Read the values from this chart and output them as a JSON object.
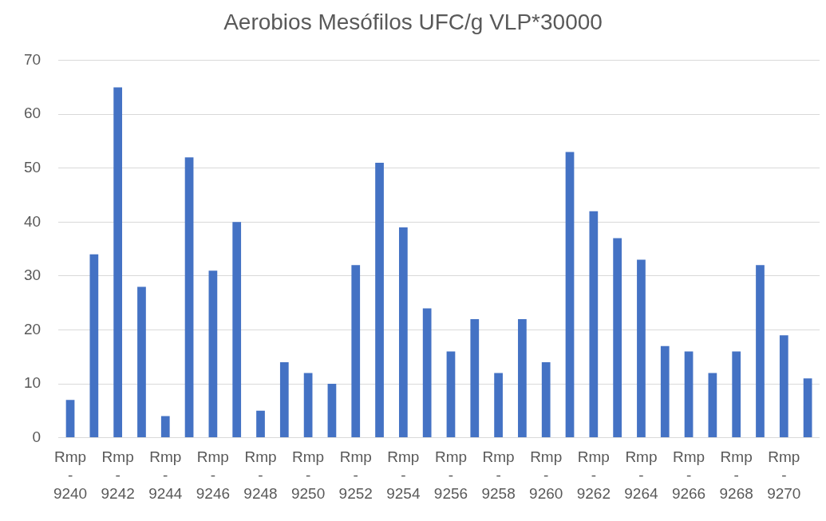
{
  "chart_data": {
    "type": "bar",
    "title": "Aerobios Mesófilos UFC/g VLP*30000",
    "categories": [
      "Rmp - 9240",
      null,
      "Rmp - 9242",
      null,
      "Rmp - 9244",
      null,
      "Rmp - 9246",
      null,
      "Rmp - 9248",
      null,
      "Rmp - 9250",
      null,
      "Rmp - 9252",
      null,
      "Rmp - 9254",
      null,
      "Rmp - 9256",
      null,
      "Rmp - 9258",
      null,
      "Rmp - 9260",
      null,
      "Rmp - 9262",
      null,
      "Rmp - 9264",
      null,
      "Rmp - 9266",
      null,
      "Rmp - 9268",
      null,
      "Rmp - 9270",
      null
    ],
    "values": [
      7,
      34,
      65,
      28,
      4,
      52,
      31,
      40,
      5,
      14,
      12,
      10,
      32,
      51,
      39,
      24,
      16,
      22,
      12,
      22,
      14,
      53,
      42,
      37,
      33,
      17,
      16,
      12,
      16,
      32,
      19,
      11
    ],
    "color": "#4472c4",
    "ylim": [
      0,
      70
    ],
    "yticks": [
      0,
      10,
      20,
      30,
      40,
      50,
      60,
      70
    ],
    "grid": "y",
    "legend": false
  }
}
